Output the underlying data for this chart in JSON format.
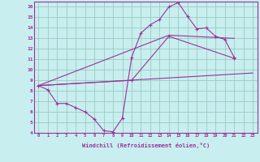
{
  "background_color": "#c8eef0",
  "grid_color": "#99ccbb",
  "line_color": "#993399",
  "xlabel": "Windchill (Refroidissement éolien,°C)",
  "xlim": [
    -0.5,
    23.5
  ],
  "ylim": [
    4,
    16.5
  ],
  "xticks": [
    0,
    1,
    2,
    3,
    4,
    5,
    6,
    7,
    8,
    9,
    10,
    11,
    12,
    13,
    14,
    15,
    16,
    17,
    18,
    19,
    20,
    21,
    22,
    23
  ],
  "yticks": [
    4,
    5,
    6,
    7,
    8,
    9,
    10,
    11,
    12,
    13,
    14,
    15,
    16
  ],
  "series1_x": [
    0,
    1,
    2,
    3,
    4,
    5,
    6,
    7,
    8,
    9,
    10,
    11,
    12,
    13,
    14,
    15,
    16,
    17,
    18,
    19,
    20,
    21
  ],
  "series1_y": [
    8.5,
    8.1,
    6.8,
    6.8,
    6.4,
    6.0,
    5.3,
    4.2,
    4.1,
    5.4,
    11.2,
    13.5,
    14.3,
    14.8,
    16.0,
    16.4,
    15.1,
    13.9,
    14.0,
    13.2,
    12.9,
    11.2
  ],
  "series2_x": [
    0,
    23
  ],
  "series2_y": [
    8.5,
    9.7
  ],
  "series3_x": [
    0,
    10,
    14,
    21
  ],
  "series3_y": [
    8.5,
    9.0,
    13.2,
    11.1
  ],
  "series4_x": [
    0,
    14,
    21
  ],
  "series4_y": [
    8.5,
    13.3,
    13.0
  ],
  "figsize": [
    3.2,
    2.0
  ],
  "dpi": 100
}
